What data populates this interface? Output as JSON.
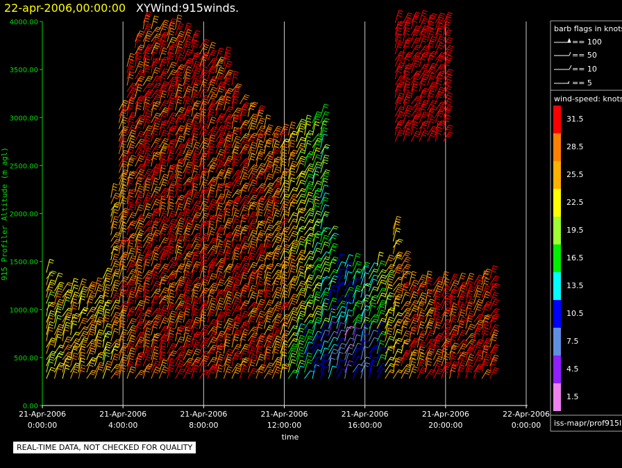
{
  "header": {
    "time_label": "22-apr-2006,00:00:00",
    "title": "XYWind:915winds."
  },
  "notice": "REAL-TIME DATA, NOT CHECKED FOR QUALITY",
  "barb_legend": {
    "title": "barb flags in knots",
    "entries": [
      {
        "label": "== 100"
      },
      {
        "label": "== 50"
      },
      {
        "label": "== 10"
      },
      {
        "label": "== 5"
      }
    ]
  },
  "speed_legend": {
    "title": "wind-speed: knots",
    "units": "knots",
    "bins": [
      {
        "value": "31.5",
        "color": "#ff0000"
      },
      {
        "value": "28.5",
        "color": "#ff8000"
      },
      {
        "value": "25.5",
        "color": "#ffb000"
      },
      {
        "value": "22.5",
        "color": "#ffff00"
      },
      {
        "value": "19.5",
        "color": "#a0ff30"
      },
      {
        "value": "16.5",
        "color": "#00ee00"
      },
      {
        "value": "13.5",
        "color": "#00ffff"
      },
      {
        "value": "10.5",
        "color": "#0000ff"
      },
      {
        "value": "7.5",
        "color": "#5f8fe0"
      },
      {
        "value": "4.5",
        "color": "#9020ff"
      },
      {
        "value": "1.5",
        "color": "#ee82ee"
      }
    ]
  },
  "source_label": "iss-mapr/prof915l",
  "chart_data": {
    "type": "scatter",
    "ylabel": "915 Profiler Altitude (m agl)",
    "xlabel": "time",
    "ylim": [
      0,
      4000
    ],
    "yticks": [
      "0.00",
      "500.00",
      "1000.00",
      "1500.00",
      "2000.00",
      "2500.00",
      "3000.00",
      "3500.00",
      "4000.00"
    ],
    "xlim_hours": [
      0,
      24
    ],
    "xticks": [
      {
        "hour": 0,
        "date": "21-Apr-2006",
        "time": "0:00:00"
      },
      {
        "hour": 4,
        "date": "21-Apr-2006",
        "time": "4:00:00"
      },
      {
        "hour": 8,
        "date": "21-Apr-2006",
        "time": "8:00:00"
      },
      {
        "hour": 12,
        "date": "21-Apr-2006",
        "time": "12:00:00"
      },
      {
        "hour": 16,
        "date": "21-Apr-2006",
        "time": "16:00:00"
      },
      {
        "hour": 20,
        "date": "21-Apr-2006",
        "time": "20:00:00"
      },
      {
        "hour": 24,
        "date": "22-Apr-2006",
        "time": "0:00:00"
      }
    ],
    "gridlines": "vertical",
    "wind_profile": {
      "time_step_hours": 0.4,
      "altitude_step_m": 65,
      "min_altitude_m": 280,
      "top_altitude_by_hour": [
        [
          0.2,
          1400
        ],
        [
          1.0,
          1200
        ],
        [
          2.0,
          1200
        ],
        [
          2.5,
          1200
        ],
        [
          3.0,
          1350
        ],
        [
          3.3,
          1900
        ],
        [
          3.7,
          3000
        ],
        [
          4.3,
          3700
        ],
        [
          5.0,
          4000
        ],
        [
          6.0,
          3950
        ],
        [
          7.0,
          3900
        ],
        [
          8.0,
          3750
        ],
        [
          9.0,
          3600
        ],
        [
          9.7,
          3200
        ],
        [
          10.3,
          3100
        ],
        [
          11.0,
          2900
        ],
        [
          12.0,
          2850
        ],
        [
          13.0,
          2900
        ],
        [
          13.8,
          3050
        ],
        [
          14.3,
          1500
        ],
        [
          15.0,
          1500
        ],
        [
          16.0,
          1400
        ],
        [
          17.0,
          1500
        ],
        [
          17.5,
          2000
        ],
        [
          18.0,
          1300
        ],
        [
          21.5,
          1300
        ],
        [
          22.0,
          1400
        ],
        [
          22.4,
          1300
        ]
      ],
      "upper_segment": {
        "hours": [
          17.5,
          20.0
        ],
        "altitude_m": [
          2750,
          4000
        ]
      },
      "speed_by_hour": [
        [
          0.0,
          23
        ],
        [
          2.0,
          26
        ],
        [
          3.0,
          24
        ],
        [
          4.0,
          30
        ],
        [
          8.0,
          31
        ],
        [
          10.0,
          30
        ],
        [
          12.0,
          27
        ],
        [
          13.0,
          20
        ],
        [
          14.0,
          16
        ],
        [
          15.0,
          12
        ],
        [
          16.0,
          17
        ],
        [
          17.0,
          22
        ],
        [
          18.0,
          29
        ],
        [
          22.5,
          32
        ]
      ]
    }
  }
}
